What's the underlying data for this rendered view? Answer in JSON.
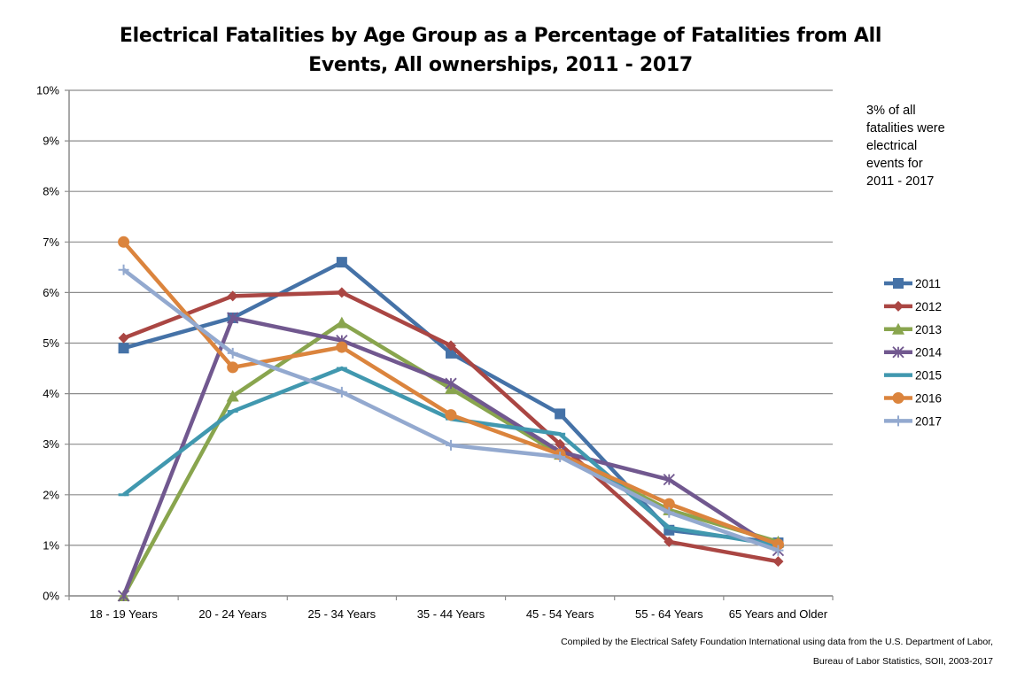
{
  "chart_data": {
    "type": "line",
    "title": "Electrical Fatalities by Age Group as a Percentage of Fatalities from All Events, All ownerships, 2011 - 2017",
    "title_lines": [
      "Electrical Fatalities by Age Group as a Percentage of Fatalities from All",
      "Events, All ownerships, 2011 - 2017"
    ],
    "xlabel": "",
    "ylabel": "",
    "categories": [
      "18 - 19 Years",
      "20 - 24 Years",
      "25 - 34 Years",
      "35 - 44 Years",
      "45 - 54 Years",
      "55 - 64 Years",
      "65 Years and Older"
    ],
    "ylim": [
      0,
      10
    ],
    "yticks": [
      "0%",
      "1%",
      "2%",
      "3%",
      "4%",
      "5%",
      "6%",
      "7%",
      "8%",
      "9%",
      "10%"
    ],
    "grid": true,
    "legend_position": "right",
    "series": [
      {
        "name": "2011",
        "color": "#4572A7",
        "marker": "square",
        "values": [
          4.9,
          5.5,
          6.6,
          4.8,
          3.6,
          1.3,
          1.05
        ]
      },
      {
        "name": "2012",
        "color": "#AA4643",
        "marker": "diamond",
        "values": [
          5.1,
          5.93,
          6.0,
          4.95,
          3.0,
          1.07,
          0.68
        ]
      },
      {
        "name": "2013",
        "color": "#89A54E",
        "marker": "triangle",
        "values": [
          0,
          3.95,
          5.4,
          4.1,
          2.8,
          1.7,
          1.07
        ]
      },
      {
        "name": "2014",
        "color": "#71588F",
        "marker": "x",
        "values": [
          0,
          5.5,
          5.05,
          4.2,
          2.85,
          2.3,
          0.9
        ]
      },
      {
        "name": "2015",
        "color": "#4198AF",
        "marker": "dash",
        "values": [
          2.0,
          3.65,
          4.5,
          3.5,
          3.2,
          1.35,
          1.0
        ]
      },
      {
        "name": "2016",
        "color": "#DB843D",
        "marker": "circle",
        "values": [
          7.0,
          4.52,
          4.92,
          3.58,
          2.8,
          1.82,
          1.02
        ]
      },
      {
        "name": "2017",
        "color": "#93A9CF",
        "marker": "plus",
        "values": [
          6.45,
          4.8,
          4.03,
          2.98,
          2.75,
          1.65,
          0.9
        ]
      }
    ]
  },
  "annotation_lines": [
    "3% of all",
    "fatalities were",
    "electrical",
    "events for",
    "2011 - 2017"
  ],
  "footer": {
    "line1": "Compiled by the Electrical Safety Foundation International using data from the U.S. Department of Labor,",
    "line2": "Bureau of Labor Statistics, SOII, 2003-2017"
  }
}
